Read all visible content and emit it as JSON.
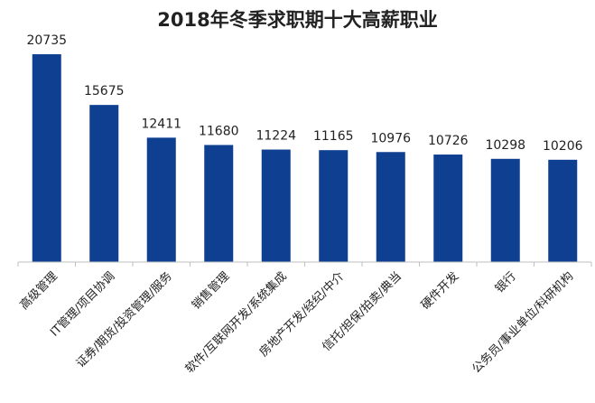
{
  "chart_data": {
    "type": "bar",
    "title": "2018年冬季求职期十大高薪职业",
    "categories": [
      "高级管理",
      "IT管理/项目协调",
      "证券/期货/投资管理/服务",
      "销售管理",
      "软件/互联网开发/系统集成",
      "房地产开发/经纪/中介",
      "信托/担保/拍卖/典当",
      "硬件开发",
      "银行",
      "公务员/事业单位/科研机构"
    ],
    "values": [
      20735,
      15675,
      12411,
      11680,
      11224,
      11165,
      10976,
      10726,
      10298,
      10206
    ],
    "value_labels": [
      "20735",
      "15675",
      "12411",
      "11680",
      "11224",
      "11165",
      "10976",
      "10726",
      "10298",
      "10206"
    ],
    "xlabel": "",
    "ylabel": "",
    "ylim": [
      0,
      22000
    ],
    "grid": false,
    "legend": "none",
    "colors": {
      "bar": "#0e3f91",
      "axis": "#bfbfbf",
      "text": "#222222"
    }
  }
}
